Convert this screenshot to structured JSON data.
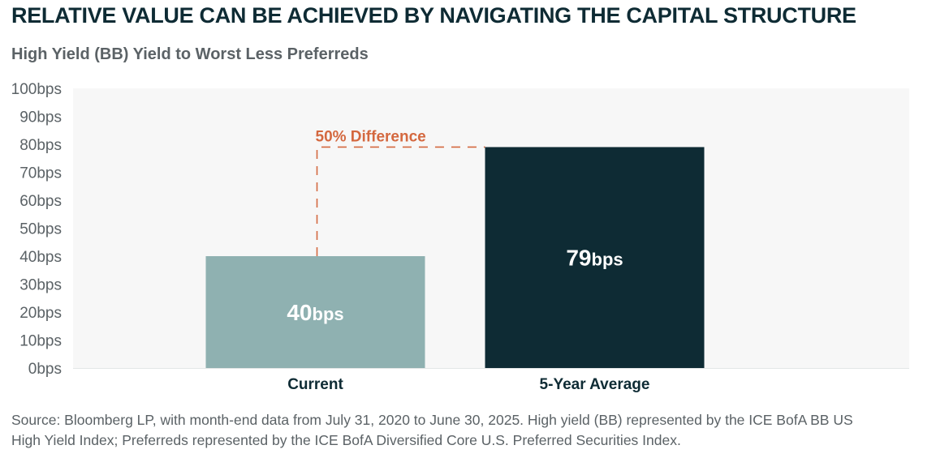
{
  "header": {
    "title": "RELATIVE VALUE CAN BE ACHIEVED BY NAVIGATING THE CAPITAL STRUCTURE",
    "subtitle": "High Yield (BB) Yield to Worst Less Preferreds"
  },
  "footer": {
    "source_line1": "Source: Bloomberg LP, with month-end data from July 31, 2020 to June 30, 2025. High yield (BB) represented by the ICE BofA BB US",
    "source_line2": "High Yield Index; Preferreds represented by the ICE BofA Diversified Core U.S. Preferred Securities Index."
  },
  "chart_data": {
    "type": "bar",
    "title": "High Yield (BB) Yield to Worst Less Preferreds",
    "categories": [
      "Current",
      "5-Year Average"
    ],
    "values": [
      40,
      79
    ],
    "data_labels": [
      {
        "number": "40",
        "unit": "bps"
      },
      {
        "number": "79",
        "unit": "bps"
      }
    ],
    "bar_colors": [
      "#8fb1b1",
      "#0e2b34"
    ],
    "label_colors": [
      "#ffffff",
      "#ffffff"
    ],
    "ylim": [
      0,
      100
    ],
    "yticks": [
      0,
      10,
      20,
      30,
      40,
      50,
      60,
      70,
      80,
      90,
      100
    ],
    "ytick_labels": [
      "0bps",
      "10bps",
      "20bps",
      "30bps",
      "40bps",
      "50bps",
      "60bps",
      "70bps",
      "80bps",
      "90bps",
      "100bps"
    ],
    "xlabel": "",
    "ylabel": "",
    "grid": false,
    "plot_background": "#f7f7f7",
    "annotation": {
      "text": "50% Difference",
      "from_value": 40,
      "to_value": 79,
      "color": "#d4683f"
    }
  }
}
